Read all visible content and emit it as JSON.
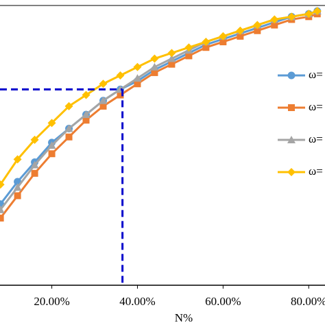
{
  "chart_data": {
    "type": "line",
    "x_label": "N%",
    "x": [
      8,
      12,
      16,
      20,
      24,
      28,
      32,
      36,
      40,
      44,
      48,
      52,
      56,
      60,
      64,
      68,
      72,
      76,
      80,
      82
    ],
    "series": [
      {
        "name": "ω=",
        "color": "#5b9bd5",
        "marker": "circle",
        "values": [
          0.29,
          0.37,
          0.44,
          0.51,
          0.56,
          0.61,
          0.66,
          0.7,
          0.73,
          0.77,
          0.8,
          0.83,
          0.86,
          0.88,
          0.9,
          0.92,
          0.94,
          0.96,
          0.97,
          0.98
        ]
      },
      {
        "name": "ω=",
        "color": "#ed7d31",
        "marker": "square",
        "values": [
          0.24,
          0.32,
          0.4,
          0.47,
          0.53,
          0.59,
          0.64,
          0.68,
          0.72,
          0.76,
          0.79,
          0.82,
          0.85,
          0.87,
          0.89,
          0.91,
          0.93,
          0.95,
          0.96,
          0.97
        ]
      },
      {
        "name": "ω=",
        "color": "#a5a5a5",
        "marker": "triangle",
        "values": [
          0.27,
          0.35,
          0.43,
          0.5,
          0.56,
          0.61,
          0.66,
          0.7,
          0.74,
          0.78,
          0.81,
          0.84,
          0.87,
          0.89,
          0.91,
          0.93,
          0.95,
          0.96,
          0.97,
          0.98
        ]
      },
      {
        "name": "ω=",
        "color": "#ffc000",
        "marker": "diamond",
        "values": [
          0.36,
          0.45,
          0.52,
          0.58,
          0.64,
          0.68,
          0.72,
          0.75,
          0.78,
          0.81,
          0.83,
          0.85,
          0.87,
          0.89,
          0.91,
          0.93,
          0.95,
          0.96,
          0.97,
          0.98
        ]
      }
    ],
    "xlim": [
      7.9,
      83.8
    ],
    "ylim": [
      0,
      1
    ],
    "xticks": [
      {
        "value": 20,
        "label": "20.00%"
      },
      {
        "value": 40,
        "label": "40.00%"
      },
      {
        "value": 60,
        "label": "60.00%"
      },
      {
        "value": 80,
        "label": "80.00%"
      }
    ],
    "reference": {
      "x": 36.5,
      "y": 0.7,
      "color": "#0000cc"
    }
  }
}
